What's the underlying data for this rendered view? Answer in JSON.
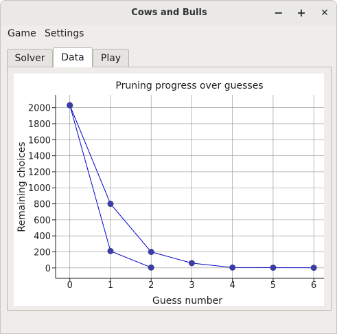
{
  "window": {
    "title": "Cows and Bulls"
  },
  "window_controls": {
    "minimize": "−",
    "maximize": "+",
    "close": "✕"
  },
  "menubar": {
    "items": [
      "Game",
      "Settings"
    ]
  },
  "tabs": [
    {
      "label": "Solver",
      "active": false
    },
    {
      "label": "Data",
      "active": true
    },
    {
      "label": "Play",
      "active": false
    }
  ],
  "chart_data": {
    "type": "line",
    "title": "Pruning progress over guesses",
    "xlabel": "Guess number",
    "ylabel": "Remaining choices",
    "xlim": [
      -0.35,
      6.25
    ],
    "ylim": [
      -130,
      2160
    ],
    "x_ticks": [
      0,
      1,
      2,
      3,
      4,
      5,
      6
    ],
    "y_ticks": [
      0,
      200,
      400,
      600,
      800,
      1000,
      1200,
      1400,
      1600,
      1800,
      2000
    ],
    "grid": true,
    "colors": {
      "line": "#0000cc",
      "marker": "#3b3ea0",
      "grid": "#8c8c8c"
    },
    "series": [
      {
        "x": [
          0,
          1,
          2,
          3,
          4,
          5,
          6
        ],
        "values": [
          2030,
          800,
          200,
          60,
          5,
          3,
          2
        ]
      },
      {
        "x": [
          0,
          1,
          2
        ],
        "values": [
          2030,
          210,
          5
        ]
      }
    ]
  }
}
